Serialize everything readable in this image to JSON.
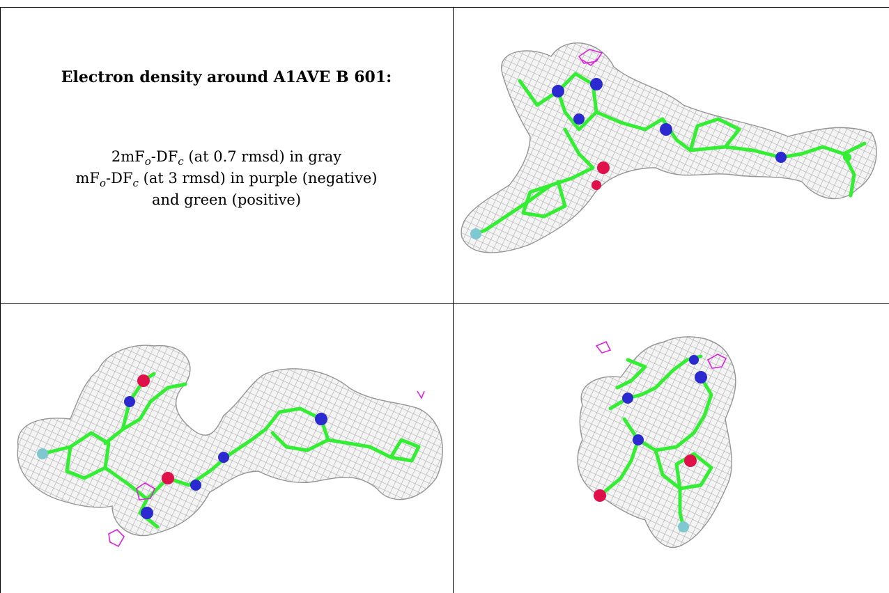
{
  "panel": {
    "title": "Electron density around A1AVE B 601:",
    "legend": [
      {
        "parts": [
          "2mF",
          "o",
          "-DF",
          "c",
          " (at 0.7 rmsd) in gray"
        ]
      },
      {
        "parts": [
          "mF",
          "o",
          "-DF",
          "c",
          " (at 3 rmsd) in purple (negative)"
        ]
      },
      {
        "parts": [
          "and green (positive)"
        ]
      }
    ]
  },
  "views": [
    {
      "name": "view-top-right"
    },
    {
      "name": "view-bottom-left"
    },
    {
      "name": "view-bottom-right"
    }
  ],
  "colors": {
    "mesh": "#a8a8a8",
    "carbon": "#33ee33",
    "nitrogen": "#2a2ad0",
    "oxygen": "#e0104a",
    "fluorine": "#80c8d0",
    "negative_density": "#dd22dd"
  }
}
